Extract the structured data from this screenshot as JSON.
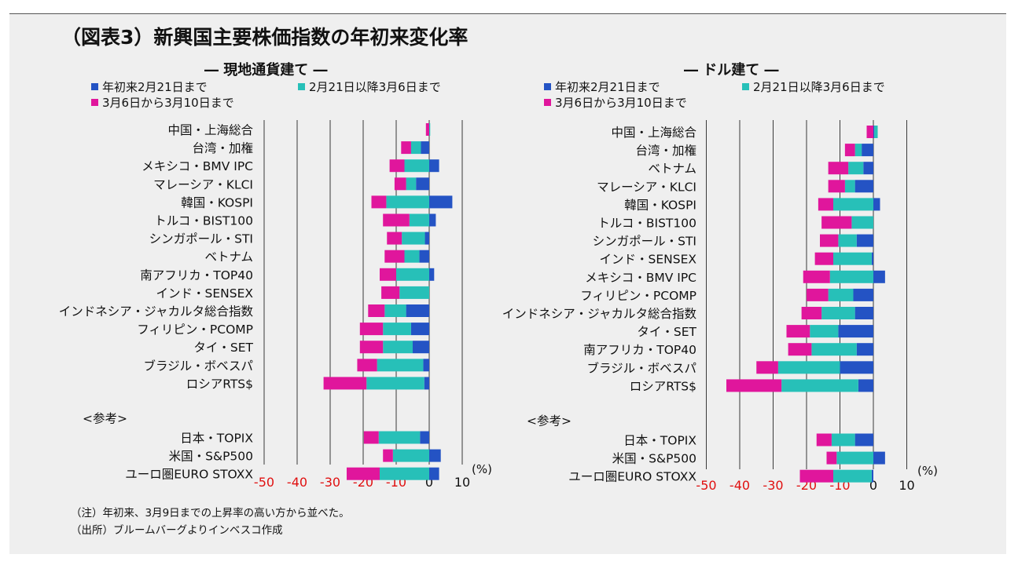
{
  "title": "（図表3）新興国主要株価指数の年初来変化率",
  "colors": {
    "period1": "#2453c4",
    "period2": "#27c0b8",
    "period3": "#e0169c"
  },
  "notes": [
    "（注）年初来、3月9日までの上昇率の高い方から並べた。",
    "（出所）ブルームバーグよりインベスコ作成"
  ],
  "chart_data": [
    {
      "type": "bar",
      "orientation": "horizontal",
      "stacked": true,
      "title": "― 現地通貨建て ―",
      "legend": [
        "年初来2月21日まで",
        "2月21日以降3月6日まで",
        "3月6日から3月10日まで"
      ],
      "xticks": [
        "-50",
        "-40",
        "-30",
        "-20",
        "-10",
        "0",
        "10"
      ],
      "xunit": "(%)",
      "xlim": [
        -50,
        10
      ],
      "reference_label": "<参考>",
      "categories": [
        "中国・上海総合",
        "台湾・加権",
        "メキシコ・BMV IPC",
        "マレーシア・KLCI",
        "韓国・KOSPI",
        "トルコ・BIST100",
        "シンガポール・STI",
        "ベトナム",
        "南アフリカ・TOP40",
        "インド・SENSEX",
        "インドネシア・ジャカルタ総合指数",
        "フィリピン・PCOMP",
        "タイ・SET",
        "ブラジル・ボベスパ",
        "ロシアRTS$",
        "日本・TOPIX",
        "米国・S&P500",
        "ユーロ圏EURO STOXX"
      ],
      "series": [
        {
          "name": "年初来2月21日まで",
          "values": [
            0,
            -2.5,
            3,
            -4,
            7,
            2,
            -1.3,
            -3,
            1.5,
            0,
            -7,
            -5.5,
            -5,
            -1.8,
            -1.5,
            -2.8,
            3.5,
            3
          ]
        },
        {
          "name": "2月21日以降3月6日まで",
          "values": [
            0.3,
            -3,
            -7.5,
            -3,
            -13,
            -6,
            -7,
            -4.5,
            -10,
            -9,
            -6.5,
            -8.5,
            -9,
            -14,
            -17.5,
            -12.5,
            -11,
            -15
          ]
        },
        {
          "name": "3月6日から3月10日まで",
          "values": [
            -1,
            -3,
            -4.5,
            -3.5,
            -4.5,
            -8,
            -4.5,
            -6,
            -5,
            -5.5,
            -5,
            -7,
            -7,
            -6,
            -13,
            -4.5,
            -3,
            -10
          ]
        }
      ]
    },
    {
      "type": "bar",
      "orientation": "horizontal",
      "stacked": true,
      "title": "― ドル建て ―",
      "legend": [
        "年初来2月21日まで",
        "2月21日以降3月6日まで",
        "3月6日から3月10日まで"
      ],
      "xticks": [
        "-50",
        "-40",
        "-30",
        "-20",
        "-10",
        "0",
        "10"
      ],
      "xunit": "(%)",
      "xlim": [
        -50,
        10
      ],
      "reference_label": "<参考>",
      "categories": [
        "中国・上海総合",
        "台湾・加権",
        "ベトナム",
        "マレーシア・KLCI",
        "韓国・KOSPI",
        "トルコ・BIST100",
        "シンガポール・STI",
        "インド・SENSEX",
        "メキシコ・BMV IPC",
        "フィリピン・PCOMP",
        "インドネシア・ジャカルタ総合指数",
        "タイ・SET",
        "南アフリカ・TOP40",
        "ブラジル・ボベスパ",
        "ロシアRTS$",
        "日本・TOPIX",
        "米国・S&P500",
        "ユーロ圏EURO STOXX"
      ],
      "series": [
        {
          "name": "年初来2月21日まで",
          "values": [
            0.3,
            -3.5,
            -3,
            -5.5,
            2,
            0,
            -5,
            -0.5,
            3.5,
            -6,
            -5.5,
            -10.5,
            -5,
            -10,
            -4.5,
            -5.5,
            3.5,
            -0.5
          ]
        },
        {
          "name": "2月21日以降3月6日まで",
          "values": [
            1,
            -2,
            -4.5,
            -3,
            -12,
            -6.5,
            -5.5,
            -11.5,
            -13,
            -7.5,
            -10,
            -8.5,
            -13.5,
            -18.5,
            -23,
            -7,
            -11,
            -11.5
          ]
        },
        {
          "name": "3月6日から3月10日まで",
          "values": [
            -2,
            -3,
            -6,
            -5,
            -4.5,
            -9,
            -5.5,
            -5.5,
            -8,
            -6.5,
            -6,
            -7,
            -7,
            -6.5,
            -16.5,
            -4.5,
            -3,
            -10
          ]
        }
      ]
    }
  ]
}
